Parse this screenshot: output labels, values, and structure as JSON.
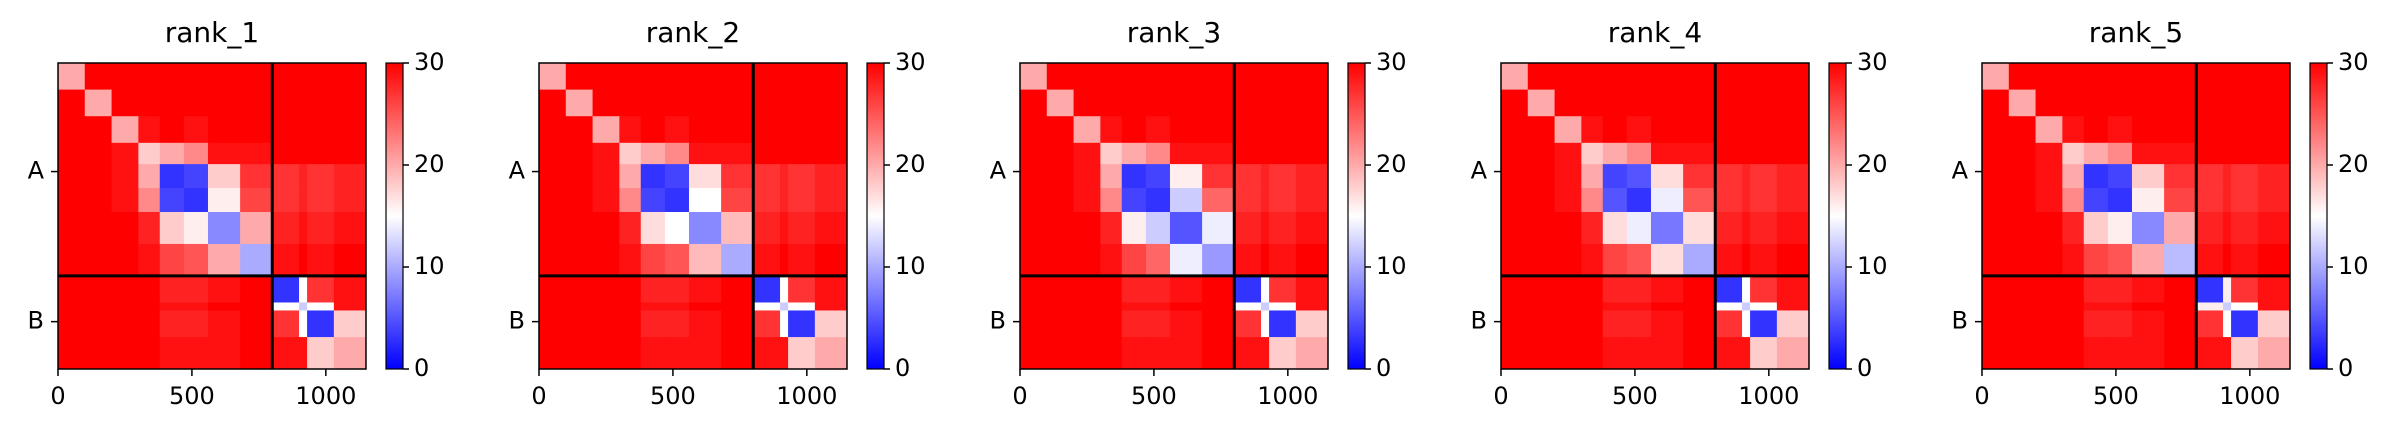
{
  "chart_data": [
    {
      "type": "heatmap",
      "title": "rank_1",
      "bins": [
        0,
        100,
        200,
        300,
        380,
        470,
        560,
        680,
        800,
        900,
        930,
        1030,
        1150
      ],
      "z": [
        [
          20,
          30,
          30,
          30,
          30,
          30,
          30,
          30,
          30,
          30,
          30,
          30
        ],
        [
          30,
          20,
          30,
          30,
          30,
          30,
          30,
          30,
          30,
          30,
          30,
          30
        ],
        [
          30,
          30,
          20,
          29,
          30,
          29,
          30,
          30,
          30,
          30,
          30,
          30
        ],
        [
          30,
          30,
          29,
          18,
          20,
          22,
          29,
          29,
          30,
          30,
          30,
          30
        ],
        [
          30,
          30,
          29,
          20,
          3,
          4,
          18,
          27,
          27,
          28,
          27,
          28
        ],
        [
          30,
          30,
          29,
          22,
          4,
          3,
          16,
          26,
          27,
          28,
          27,
          28
        ],
        [
          30,
          30,
          30,
          28,
          18,
          16,
          8,
          20,
          28,
          29,
          28,
          29
        ],
        [
          30,
          30,
          30,
          29,
          26,
          25,
          20,
          10,
          29,
          30,
          29,
          30
        ],
        [
          30,
          30,
          30,
          30,
          28,
          28,
          29,
          30,
          3,
          15,
          27,
          29
        ],
        [
          30,
          30,
          30,
          30,
          29,
          29,
          30,
          30,
          15,
          12,
          15,
          29
        ],
        [
          30,
          30,
          30,
          30,
          28,
          28,
          29,
          30,
          27,
          15,
          3,
          18
        ],
        [
          30,
          30,
          30,
          30,
          29,
          29,
          29,
          30,
          29,
          29,
          18,
          20
        ]
      ],
      "xlim": [
        0,
        1150
      ],
      "ylim": [
        1150,
        0
      ],
      "xticks": [
        0,
        500,
        1000
      ],
      "yticks": [
        {
          "value": 408,
          "label": "A"
        },
        {
          "value": 972,
          "label": "B"
        }
      ],
      "chain_boundaries": [
        800
      ],
      "clim": [
        0,
        30
      ],
      "cbar_ticks": [
        0,
        10,
        20,
        30
      ],
      "colormap": [
        "#0000ff",
        "#ffffff",
        "#ff0000"
      ]
    },
    {
      "type": "heatmap",
      "title": "rank_2",
      "bins": [
        0,
        100,
        200,
        300,
        380,
        470,
        560,
        680,
        800,
        900,
        930,
        1030,
        1150
      ],
      "z": [
        [
          20,
          30,
          30,
          30,
          30,
          30,
          30,
          30,
          30,
          30,
          30,
          30
        ],
        [
          30,
          20,
          30,
          30,
          30,
          30,
          30,
          30,
          30,
          30,
          30,
          30
        ],
        [
          30,
          30,
          20,
          29,
          30,
          29,
          30,
          30,
          30,
          30,
          30,
          30
        ],
        [
          30,
          30,
          29,
          18,
          20,
          22,
          29,
          29,
          30,
          30,
          30,
          30
        ],
        [
          30,
          30,
          29,
          20,
          3,
          4,
          17,
          27,
          27,
          28,
          27,
          28
        ],
        [
          30,
          30,
          29,
          22,
          4,
          3,
          15,
          26,
          27,
          28,
          27,
          28
        ],
        [
          30,
          30,
          30,
          28,
          17,
          15,
          8,
          19,
          28,
          29,
          28,
          29
        ],
        [
          30,
          30,
          30,
          29,
          26,
          25,
          19,
          10,
          29,
          30,
          29,
          30
        ],
        [
          30,
          30,
          30,
          30,
          28,
          28,
          29,
          30,
          3,
          15,
          27,
          29
        ],
        [
          30,
          30,
          30,
          30,
          29,
          29,
          30,
          30,
          15,
          12,
          15,
          29
        ],
        [
          30,
          30,
          30,
          30,
          28,
          28,
          29,
          30,
          27,
          15,
          3,
          18
        ],
        [
          30,
          30,
          30,
          30,
          29,
          29,
          29,
          30,
          29,
          29,
          18,
          20
        ]
      ],
      "xlim": [
        0,
        1150
      ],
      "ylim": [
        1150,
        0
      ],
      "xticks": [
        0,
        500,
        1000
      ],
      "yticks": [
        {
          "value": 408,
          "label": "A"
        },
        {
          "value": 972,
          "label": "B"
        }
      ],
      "chain_boundaries": [
        800
      ],
      "clim": [
        0,
        30
      ],
      "cbar_ticks": [
        0,
        10,
        20,
        30
      ],
      "colormap": [
        "#0000ff",
        "#ffffff",
        "#ff0000"
      ]
    },
    {
      "type": "heatmap",
      "title": "rank_3",
      "bins": [
        0,
        100,
        200,
        300,
        380,
        470,
        560,
        680,
        800,
        900,
        930,
        1030,
        1150
      ],
      "z": [
        [
          20,
          30,
          30,
          30,
          30,
          30,
          30,
          30,
          30,
          30,
          30,
          30
        ],
        [
          30,
          20,
          30,
          30,
          30,
          30,
          30,
          30,
          30,
          30,
          30,
          30
        ],
        [
          30,
          30,
          20,
          29,
          30,
          29,
          30,
          30,
          30,
          30,
          30,
          30
        ],
        [
          30,
          30,
          29,
          18,
          20,
          22,
          29,
          29,
          30,
          30,
          30,
          30
        ],
        [
          30,
          30,
          29,
          20,
          3,
          4,
          16,
          27,
          27,
          28,
          27,
          28
        ],
        [
          30,
          30,
          29,
          22,
          4,
          3,
          12,
          24,
          27,
          28,
          27,
          28
        ],
        [
          30,
          30,
          30,
          28,
          16,
          12,
          5,
          14,
          28,
          29,
          28,
          29
        ],
        [
          30,
          30,
          30,
          29,
          26,
          24,
          14,
          9,
          29,
          30,
          29,
          30
        ],
        [
          30,
          30,
          30,
          30,
          28,
          28,
          29,
          30,
          3,
          15,
          27,
          29
        ],
        [
          30,
          30,
          30,
          30,
          29,
          29,
          30,
          30,
          15,
          12,
          15,
          29
        ],
        [
          30,
          30,
          30,
          30,
          28,
          28,
          29,
          30,
          27,
          15,
          3,
          18
        ],
        [
          30,
          30,
          30,
          30,
          29,
          29,
          29,
          30,
          29,
          29,
          18,
          20
        ]
      ],
      "xlim": [
        0,
        1150
      ],
      "ylim": [
        1150,
        0
      ],
      "xticks": [
        0,
        500,
        1000
      ],
      "yticks": [
        {
          "value": 408,
          "label": "A"
        },
        {
          "value": 972,
          "label": "B"
        }
      ],
      "chain_boundaries": [
        800
      ],
      "clim": [
        0,
        30
      ],
      "cbar_ticks": [
        0,
        10,
        20,
        30
      ],
      "colormap": [
        "#0000ff",
        "#ffffff",
        "#ff0000"
      ]
    },
    {
      "type": "heatmap",
      "title": "rank_4",
      "bins": [
        0,
        100,
        200,
        300,
        380,
        470,
        560,
        680,
        800,
        900,
        930,
        1030,
        1150
      ],
      "z": [
        [
          20,
          30,
          30,
          30,
          30,
          30,
          30,
          30,
          30,
          30,
          30,
          30
        ],
        [
          30,
          20,
          30,
          30,
          30,
          30,
          30,
          30,
          30,
          30,
          30,
          30
        ],
        [
          30,
          30,
          20,
          29,
          30,
          29,
          30,
          30,
          30,
          30,
          30,
          30
        ],
        [
          30,
          30,
          29,
          18,
          20,
          22,
          29,
          29,
          30,
          30,
          30,
          30
        ],
        [
          30,
          30,
          29,
          20,
          4,
          5,
          17,
          27,
          27,
          28,
          27,
          28
        ],
        [
          30,
          30,
          29,
          22,
          5,
          3,
          14,
          25,
          27,
          28,
          27,
          28
        ],
        [
          30,
          30,
          30,
          28,
          17,
          14,
          7,
          17,
          28,
          29,
          28,
          29
        ],
        [
          30,
          30,
          30,
          29,
          26,
          25,
          17,
          10,
          29,
          30,
          29,
          30
        ],
        [
          30,
          30,
          30,
          30,
          28,
          28,
          29,
          30,
          3,
          15,
          27,
          29
        ],
        [
          30,
          30,
          30,
          30,
          29,
          29,
          30,
          30,
          15,
          12,
          15,
          29
        ],
        [
          30,
          30,
          30,
          30,
          28,
          28,
          29,
          30,
          27,
          15,
          3,
          18
        ],
        [
          30,
          30,
          30,
          30,
          29,
          29,
          29,
          30,
          29,
          29,
          18,
          20
        ]
      ],
      "xlim": [
        0,
        1150
      ],
      "ylim": [
        1150,
        0
      ],
      "xticks": [
        0,
        500,
        1000
      ],
      "yticks": [
        {
          "value": 408,
          "label": "A"
        },
        {
          "value": 972,
          "label": "B"
        }
      ],
      "chain_boundaries": [
        800
      ],
      "clim": [
        0,
        30
      ],
      "cbar_ticks": [
        0,
        10,
        20,
        30
      ],
      "colormap": [
        "#0000ff",
        "#ffffff",
        "#ff0000"
      ]
    },
    {
      "type": "heatmap",
      "title": "rank_5",
      "bins": [
        0,
        100,
        200,
        300,
        380,
        470,
        560,
        680,
        800,
        900,
        930,
        1030,
        1150
      ],
      "z": [
        [
          20,
          30,
          30,
          30,
          30,
          30,
          30,
          30,
          30,
          30,
          30,
          30
        ],
        [
          30,
          20,
          30,
          30,
          30,
          30,
          30,
          30,
          30,
          30,
          30,
          30
        ],
        [
          30,
          30,
          20,
          29,
          30,
          29,
          30,
          30,
          30,
          30,
          30,
          30
        ],
        [
          30,
          30,
          29,
          18,
          20,
          22,
          29,
          29,
          30,
          30,
          30,
          30
        ],
        [
          30,
          30,
          29,
          20,
          3,
          4,
          18,
          27,
          27,
          28,
          27,
          28
        ],
        [
          30,
          30,
          29,
          22,
          4,
          3,
          16,
          26,
          27,
          28,
          27,
          28
        ],
        [
          30,
          30,
          30,
          28,
          18,
          16,
          8,
          20,
          28,
          29,
          28,
          29
        ],
        [
          30,
          30,
          30,
          29,
          26,
          25,
          20,
          11,
          29,
          30,
          29,
          30
        ],
        [
          30,
          30,
          30,
          30,
          28,
          28,
          29,
          30,
          3,
          16,
          27,
          29
        ],
        [
          30,
          30,
          30,
          30,
          29,
          29,
          30,
          30,
          16,
          12,
          15,
          29
        ],
        [
          30,
          30,
          30,
          30,
          28,
          28,
          29,
          30,
          27,
          15,
          3,
          18
        ],
        [
          30,
          30,
          30,
          30,
          29,
          29,
          29,
          30,
          29,
          29,
          18,
          20
        ]
      ],
      "xlim": [
        0,
        1150
      ],
      "ylim": [
        1150,
        0
      ],
      "xticks": [
        0,
        500,
        1000
      ],
      "yticks": [
        {
          "value": 408,
          "label": "A"
        },
        {
          "value": 972,
          "label": "B"
        }
      ],
      "chain_boundaries": [
        800
      ],
      "clim": [
        0,
        30
      ],
      "cbar_ticks": [
        0,
        10,
        20,
        30
      ],
      "colormap": [
        "#0000ff",
        "#ffffff",
        "#ff0000"
      ]
    }
  ]
}
